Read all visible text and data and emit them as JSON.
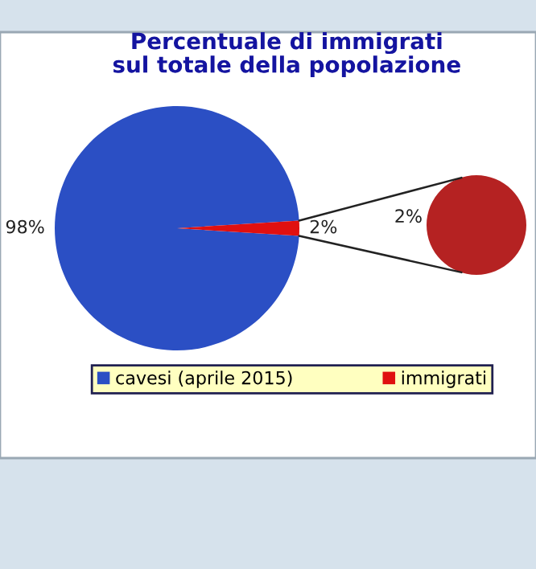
{
  "chart_data": [
    {
      "type": "pie",
      "title": "Percentuale di immigrati\nsul totale della popolazione",
      "categories": [
        "cavesi (aprile 2015)",
        "immigrati"
      ],
      "values": [
        98,
        2
      ],
      "colors": [
        "#2b4fc4",
        "#e01010"
      ],
      "value_labels": [
        "98%",
        "2%"
      ],
      "legend": "bottom"
    },
    {
      "type": "pie",
      "categories": [
        null
      ],
      "values": [
        100
      ],
      "colors": [
        "#b52222"
      ],
      "annotations": [
        "2%"
      ]
    }
  ]
}
